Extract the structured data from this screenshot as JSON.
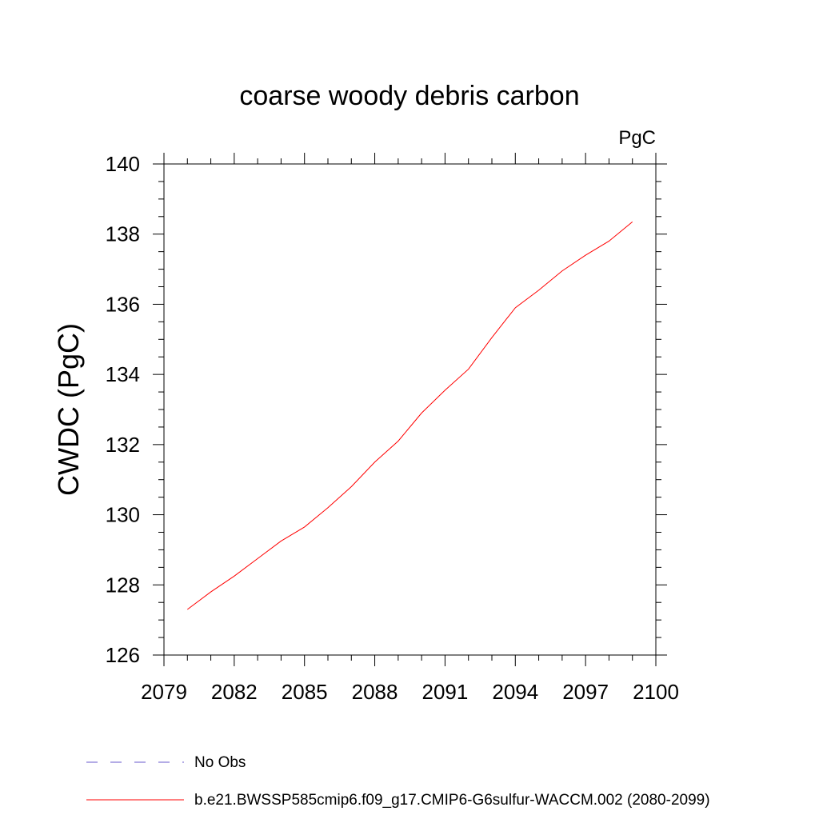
{
  "chart_data": {
    "type": "line",
    "title": "coarse woody debris carbon",
    "units": "PgC",
    "ylabel": "CWDC  (PgC)",
    "xlabel": "",
    "xlim": [
      2079,
      2100
    ],
    "ylim": [
      126,
      140
    ],
    "x_ticks": [
      2079,
      2082,
      2085,
      2088,
      2091,
      2094,
      2097,
      2100
    ],
    "y_ticks": [
      126,
      128,
      130,
      132,
      134,
      136,
      138,
      140
    ],
    "grid": false,
    "series": [
      {
        "name": "b.e21.BWSSP585cmip6.f09_g17.CMIP6-G6sulfur-WACCM.002 (2080-2099)",
        "color": "#ff0000",
        "dash": "solid",
        "x": [
          2080,
          2081,
          2082,
          2083,
          2084,
          2085,
          2086,
          2087,
          2088,
          2089,
          2090,
          2091,
          2092,
          2093,
          2094,
          2095,
          2096,
          2097,
          2098,
          2099
        ],
        "y": [
          127.3,
          127.8,
          128.25,
          128.75,
          129.25,
          129.65,
          130.2,
          130.8,
          131.5,
          132.1,
          132.9,
          133.55,
          134.15,
          135.05,
          135.9,
          136.4,
          136.95,
          137.4,
          137.8,
          138.35
        ]
      }
    ],
    "legend": [
      {
        "label": "No Obs",
        "color": "#6a5acd",
        "dash": "dashed"
      },
      {
        "label": "b.e21.BWSSP585cmip6.f09_g17.CMIP6-G6sulfur-WACCM.002 (2080-2099)",
        "color": "#ff0000",
        "dash": "solid"
      }
    ],
    "legend_position": "bottom-left"
  }
}
